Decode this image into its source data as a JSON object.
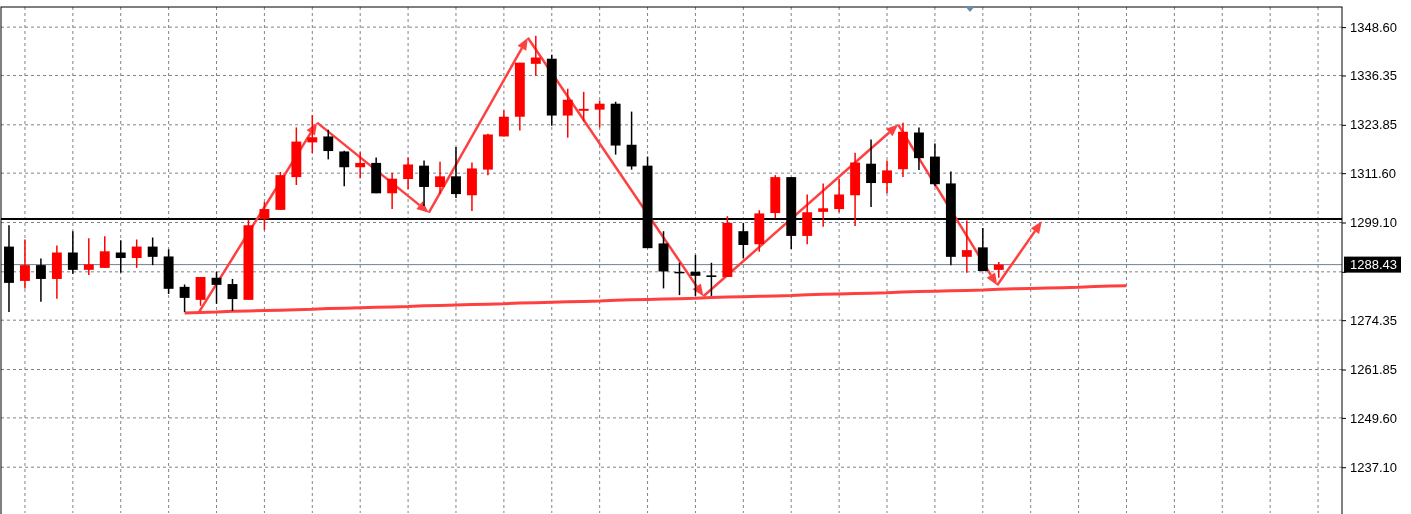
{
  "chart_data": {
    "type": "candlestick",
    "categories": [
      null,
      null,
      null,
      null,
      null,
      null,
      null,
      null,
      null,
      null,
      null,
      null,
      null,
      null,
      null,
      null,
      null,
      null,
      null,
      null,
      null,
      null,
      null,
      null,
      null,
      null,
      null,
      null,
      null,
      null,
      null,
      null,
      null,
      null,
      null,
      null,
      null,
      null,
      null,
      null,
      null,
      null,
      null,
      null,
      null,
      null,
      null,
      null,
      null,
      null,
      null,
      null,
      null,
      null,
      null,
      null,
      null,
      null,
      null,
      null,
      null,
      null,
      null,
      null,
      null,
      null,
      null,
      null,
      null,
      null,
      null,
      null,
      null,
      null,
      null,
      null,
      null,
      null,
      null,
      null,
      null,
      null,
      null,
      null
    ],
    "series": [
      {
        "ohlc": [
          [
            1293.0,
            1298.4,
            1276.4,
            1283.8
          ],
          [
            1284.3,
            1294.8,
            1282.4,
            1288.3
          ],
          [
            1288.3,
            1290.0,
            1279.0,
            1284.8
          ],
          [
            1284.8,
            1293.3,
            1279.8,
            1291.5
          ],
          [
            1291.5,
            1296.9,
            1286.1,
            1287.1
          ],
          [
            1287.1,
            1295.1,
            1285.8,
            1288.5
          ],
          [
            1287.6,
            1295.6,
            1287.6,
            1291.8
          ],
          [
            1291.5,
            1294.6,
            1286.4,
            1290.1
          ],
          [
            1290.1,
            1294.8,
            1287.6,
            1293.0
          ],
          [
            1293.0,
            1295.3,
            1288.3,
            1290.4
          ],
          [
            1290.5,
            1292.3,
            1281.0,
            1282.3
          ],
          [
            1282.8,
            1283.4,
            1276.4,
            1280.0
          ],
          [
            1279.5,
            1285.3,
            1278.0,
            1285.3
          ],
          [
            1285.1,
            1286.6,
            1278.5,
            1283.3
          ],
          [
            1283.5,
            1284.8,
            1276.7,
            1279.7
          ],
          [
            1279.5,
            1299.7,
            1279.5,
            1298.4
          ],
          [
            1300.0,
            1304.3,
            1297.2,
            1302.5
          ],
          [
            1302.3,
            1311.9,
            1302.3,
            1311.1
          ],
          [
            1310.6,
            1323.2,
            1308.6,
            1319.6
          ],
          [
            1319.4,
            1326.3,
            1316.7,
            1320.7
          ],
          [
            1320.9,
            1322.6,
            1315.1,
            1317.2
          ],
          [
            1317.1,
            1317.3,
            1308.3,
            1313.1
          ],
          [
            1313.1,
            1316.9,
            1310.3,
            1314.2
          ],
          [
            1314.2,
            1315.6,
            1306.5,
            1306.5
          ],
          [
            1306.5,
            1311.7,
            1302.5,
            1310.2
          ],
          [
            1310.1,
            1315.6,
            1307.6,
            1313.8
          ],
          [
            1313.5,
            1314.8,
            1303.3,
            1308.1
          ],
          [
            1308.1,
            1314.5,
            1306.3,
            1310.8
          ],
          [
            1310.8,
            1318.2,
            1305.3,
            1306.3
          ],
          [
            1306.0,
            1314.3,
            1302.0,
            1312.8
          ],
          [
            1312.5,
            1321.6,
            1311.1,
            1321.4
          ],
          [
            1320.9,
            1327.5,
            1320.9,
            1325.9
          ],
          [
            1325.9,
            1339.6,
            1322.4,
            1339.6
          ],
          [
            1339.3,
            1346.4,
            1336.3,
            1340.9
          ],
          [
            1340.6,
            1341.6,
            1323.6,
            1326.2
          ],
          [
            1326.2,
            1333.0,
            1320.6,
            1330.2
          ],
          [
            1327.4,
            1332.2,
            1324.7,
            1327.9
          ],
          [
            1327.7,
            1330.0,
            1323.2,
            1329.2
          ],
          [
            1329.2,
            1329.7,
            1316.3,
            1318.6
          ],
          [
            1318.8,
            1327.2,
            1312.5,
            1313.3
          ],
          [
            1313.5,
            1315.8,
            1292.6,
            1292.6
          ],
          [
            1293.8,
            1296.9,
            1282.4,
            1286.7
          ],
          [
            1286.6,
            1288.9,
            1280.7,
            1286.3
          ],
          [
            1286.6,
            1290.9,
            1280.5,
            1285.6
          ],
          [
            1285.7,
            1288.9,
            1280.5,
            1285.3
          ],
          [
            1285.3,
            1300.7,
            1285.3,
            1299.0
          ],
          [
            1296.9,
            1299.0,
            1290.0,
            1293.4
          ],
          [
            1293.6,
            1302.2,
            1291.7,
            1301.4
          ],
          [
            1301.5,
            1311.1,
            1300.2,
            1310.6
          ],
          [
            1310.6,
            1310.6,
            1292.4,
            1295.7
          ],
          [
            1295.7,
            1306.2,
            1293.6,
            1301.7
          ],
          [
            1301.8,
            1309.0,
            1298.0,
            1302.7
          ],
          [
            1302.5,
            1310.2,
            1301.7,
            1306.2
          ],
          [
            1306.0,
            1316.8,
            1298.2,
            1314.3
          ],
          [
            1314.0,
            1320.1,
            1303.0,
            1309.1
          ],
          [
            1309.1,
            1314.8,
            1306.5,
            1312.3
          ],
          [
            1312.6,
            1324.4,
            1310.6,
            1322.1
          ],
          [
            1321.9,
            1323.2,
            1312.4,
            1315.4
          ],
          [
            1315.8,
            1319.1,
            1308.3,
            1308.8
          ],
          [
            1309.0,
            1312.0,
            1288.3,
            1290.4
          ],
          [
            1290.4,
            1299.6,
            1286.4,
            1292.1
          ],
          [
            1292.8,
            1297.7,
            1286.8,
            1286.8
          ],
          [
            1287.1,
            1289.1,
            1285.1,
            1288.43
          ],
          null,
          null,
          null,
          null,
          null,
          null,
          null,
          null,
          null,
          null,
          null,
          null,
          null,
          null,
          null,
          null,
          null,
          null,
          null,
          null,
          null
        ],
        "colors": [
          "#000000",
          "#ff0000",
          "#000000",
          "#ff0000",
          "#000000",
          "#ff0000",
          "#ff0000",
          "#000000",
          "#ff0000",
          "#000000",
          "#000000",
          "#000000",
          "#ff0000",
          "#000000",
          "#000000",
          "#ff0000",
          "#ff0000",
          "#ff0000",
          "#ff0000",
          "#ff0000",
          "#000000",
          "#000000",
          "#ff0000",
          "#000000",
          "#ff0000",
          "#ff0000",
          "#000000",
          "#ff0000",
          "#000000",
          "#ff0000",
          "#ff0000",
          "#ff0000",
          "#ff0000",
          "#ff0000",
          "#000000",
          "#ff0000",
          "#ff0000",
          "#ff0000",
          "#000000",
          "#000000",
          "#000000",
          "#000000",
          "#000000",
          "#000000",
          "#000000",
          "#ff0000",
          "#000000",
          "#ff0000",
          "#ff0000",
          "#000000",
          "#ff0000",
          "#ff0000",
          "#ff0000",
          "#ff0000",
          "#000000",
          "#ff0000",
          "#ff0000",
          "#000000",
          "#000000",
          "#000000",
          "#ff0000",
          "#000000",
          "#ff0000",
          null,
          null,
          null,
          null,
          null,
          null,
          null,
          null,
          null,
          null,
          null,
          null,
          null,
          null,
          null,
          null,
          null,
          null,
          null,
          null,
          null
        ]
      },
      {
        "type": "line",
        "color": "#ff4040",
        "values": [
          null,
          null,
          null,
          null,
          null,
          null,
          null,
          null,
          null,
          null,
          null,
          1276.2,
          1276.3,
          1276.4,
          1276.6,
          1276.7,
          1276.8,
          1276.9,
          1277.0,
          1277.1,
          1277.3,
          1277.4,
          1277.5,
          1277.6,
          1277.7,
          1277.8,
          1278.0,
          1278.1,
          1278.2,
          1278.3,
          1278.4,
          1278.5,
          1278.7,
          1278.8,
          1278.9,
          1279.0,
          1279.1,
          1279.2,
          1279.4,
          1279.5,
          1279.6,
          1279.7,
          1279.8,
          1279.9,
          1280.1,
          1280.2,
          1280.3,
          1280.4,
          1280.5,
          1280.6,
          1280.8,
          1280.9,
          1281.0,
          1281.1,
          1281.2,
          1281.3,
          1281.5,
          1281.6,
          1281.7,
          1281.8,
          1281.9,
          1282.0,
          1282.2,
          1282.3,
          1282.4,
          1282.5,
          1282.6,
          1282.7,
          1282.9,
          1283.0,
          1283.1,
          null,
          null,
          null,
          null,
          null,
          null,
          null,
          null,
          null,
          null,
          null,
          null,
          null
        ]
      }
    ],
    "ylim": [
      1225.5,
      1353.7
    ],
    "yticks": [
      {
        "value": 1348.6,
        "label": "1348.60"
      },
      1336.35,
      1323.85,
      {
        "value": 1311.6,
        "label": "1311.60"
      },
      {
        "value": 1299.1,
        "label": "1299.10"
      },
      {
        "value": 1286.6,
        "label": null
      },
      1274.35,
      1261.85,
      {
        "value": 1249.6,
        "label": "1249.60"
      },
      {
        "value": 1237.1,
        "label": "1237.10"
      }
    ],
    "grid": true,
    "tick_labels": "y",
    "ref_lines": [
      {
        "axis": "y",
        "value": 1300.0,
        "color": "#000000"
      },
      {
        "axis": "y",
        "value": 1288.43,
        "label": "1288.43",
        "color": "#708090"
      }
    ]
  }
}
